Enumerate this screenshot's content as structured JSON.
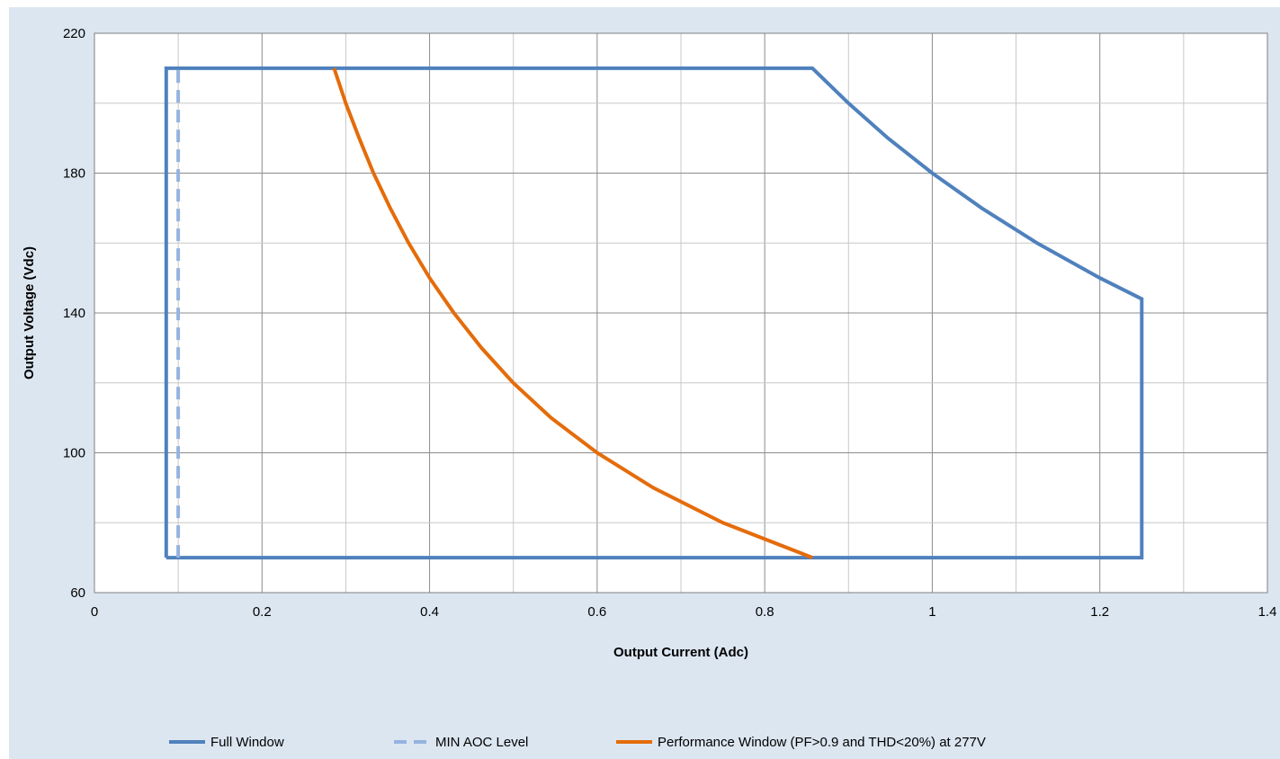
{
  "chart_data": {
    "type": "line",
    "title": "",
    "xlabel": "Output Current (Adc)",
    "ylabel": "Output Voltage (Vdc)",
    "xlim": [
      0,
      1.4
    ],
    "ylim": [
      60,
      220
    ],
    "x_ticks": [
      0,
      0.2,
      0.4,
      0.6,
      0.8,
      1,
      1.2,
      1.4
    ],
    "x_tick_labels": [
      "0",
      "0.2",
      "0.4",
      "0.6",
      "0.8",
      "1",
      "1.2",
      "1.4"
    ],
    "y_ticks": [
      60,
      100,
      140,
      180,
      220
    ],
    "y_tick_labels": [
      "60",
      "100",
      "140",
      "180",
      "220"
    ],
    "grid": true,
    "legend_position": "bottom",
    "series": [
      {
        "name": "Full Window",
        "color": "#4f81bd",
        "dash": "solid",
        "points": [
          [
            0.0857,
            70
          ],
          [
            0.0857,
            210
          ],
          [
            0.857,
            210
          ],
          [
            0.9,
            200
          ],
          [
            0.947,
            190
          ],
          [
            1.0,
            180
          ],
          [
            1.059,
            170
          ],
          [
            1.125,
            160
          ],
          [
            1.2,
            150
          ],
          [
            1.25,
            144
          ],
          [
            1.25,
            70
          ],
          [
            0.0857,
            70
          ]
        ]
      },
      {
        "name": "MIN AOC Level",
        "color": "#95b3e0",
        "dash": "dashed",
        "points": [
          [
            0.1,
            70
          ],
          [
            0.1,
            210
          ]
        ]
      },
      {
        "name": "Performance Window (PF>0.9 and THD<20%) at 277V",
        "color": "#e46c0a",
        "dash": "solid",
        "points": [
          [
            0.286,
            210
          ],
          [
            0.3,
            200
          ],
          [
            0.316,
            190
          ],
          [
            0.333,
            180
          ],
          [
            0.353,
            170
          ],
          [
            0.375,
            160
          ],
          [
            0.4,
            150
          ],
          [
            0.429,
            140
          ],
          [
            0.462,
            130
          ],
          [
            0.5,
            120
          ],
          [
            0.545,
            110
          ],
          [
            0.6,
            100
          ],
          [
            0.667,
            90
          ],
          [
            0.75,
            80
          ],
          [
            0.857,
            70
          ]
        ]
      }
    ]
  }
}
